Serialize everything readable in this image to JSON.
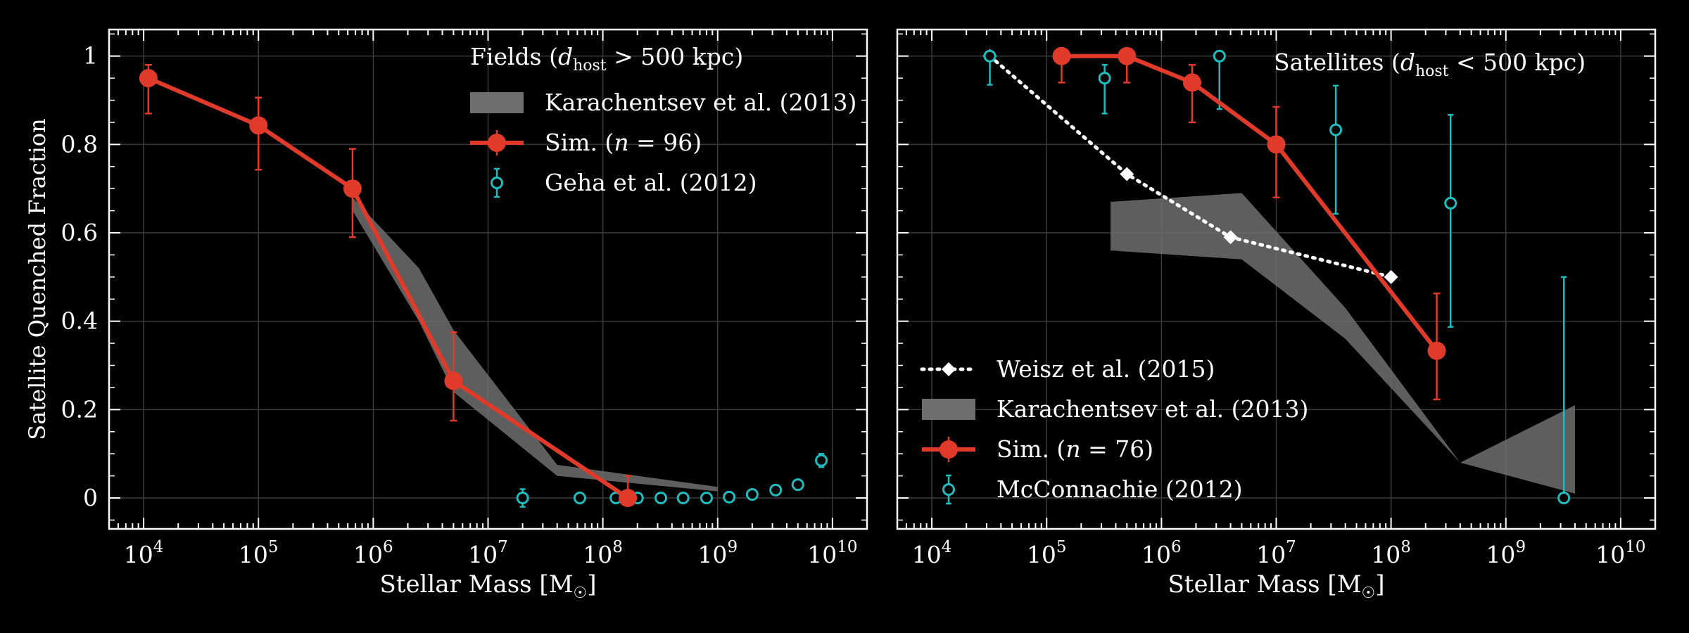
{
  "figure": {
    "background": "#000000",
    "colors": {
      "sim": "#e03a2b",
      "obs": "#1fbcbf",
      "band": "#6e6e6e",
      "weisz": "#ffffff",
      "grid": "#3a3a3a",
      "axes": "#ffffff"
    }
  },
  "shared": {
    "ylabel": "Satellite Quenched Fraction",
    "xlabel": "Stellar Mass [M",
    "xlabel_sub": "☉",
    "xlabel_close": "]",
    "x_ticks": [
      4,
      5,
      6,
      7,
      8,
      9,
      10
    ],
    "x_tick_base": "10",
    "y_ticks": [
      "0",
      "0.2",
      "0.4",
      "0.6",
      "0.8",
      "1"
    ]
  },
  "chart_data": [
    {
      "type": "line",
      "id": "fields",
      "xscale": "log",
      "xlim": [
        5000.0,
        20000000000.0
      ],
      "ylim": [
        -0.07,
        1.06
      ],
      "grid": true,
      "legend": {
        "placement": "top-right",
        "title_pre": "Fields (",
        "title_var": "d",
        "title_sub": "host",
        "title_post": "  >  500 kpc)",
        "entries": [
          {
            "kind": "band",
            "label_pre": "Karachentsev et al. (2013)",
            "label_var": "",
            "label_post": ""
          },
          {
            "kind": "sim",
            "label_pre": "Sim. (",
            "label_var": "n",
            "label_post": " = 96)"
          },
          {
            "kind": "obs",
            "label_pre": "Geha et al. (2012)",
            "label_var": "",
            "label_post": ""
          }
        ]
      },
      "series": [
        {
          "name": "Sim. (n = 96)",
          "kind": "sim",
          "points": [
            {
              "x": 11000.0,
              "y": 0.95,
              "yerr": [
                0.08,
                0.03
              ]
            },
            {
              "x": 100000.0,
              "y": 0.843,
              "yerr": [
                0.1,
                0.063
              ]
            },
            {
              "x": 660000.0,
              "y": 0.7,
              "yerr": [
                0.11,
                0.09
              ]
            },
            {
              "x": 5000000.0,
              "y": 0.265,
              "yerr": [
                0.09,
                0.11
              ]
            },
            {
              "x": 165000000.0,
              "y": 0.0,
              "yerr": [
                0.0,
                0.05
              ]
            }
          ]
        },
        {
          "name": "Geha et al. (2012)",
          "kind": "obs",
          "points": [
            {
              "x": 20000000.0,
              "y": 0.0,
              "yerr": [
                0.02,
                0.02
              ]
            },
            {
              "x": 63000000.0,
              "y": 0.0,
              "yerr": [
                0.01,
                0.01
              ]
            },
            {
              "x": 130000000.0,
              "y": 0.0,
              "yerr": [
                0.01,
                0.01
              ]
            },
            {
              "x": 200000000.0,
              "y": 0.0,
              "yerr": [
                0.01,
                0.01
              ]
            },
            {
              "x": 320000000.0,
              "y": 0.0,
              "yerr": [
                0.01,
                0.01
              ]
            },
            {
              "x": 500000000.0,
              "y": 0.0,
              "yerr": [
                0.01,
                0.01
              ]
            },
            {
              "x": 800000000.0,
              "y": 0.0,
              "yerr": [
                0.01,
                0.01
              ]
            },
            {
              "x": 1260000000.0,
              "y": 0.002,
              "yerr": [
                0.01,
                0.01
              ]
            },
            {
              "x": 2000000000.0,
              "y": 0.008,
              "yerr": [
                0.01,
                0.01
              ]
            },
            {
              "x": 3200000000.0,
              "y": 0.018,
              "yerr": [
                0.01,
                0.01
              ]
            },
            {
              "x": 5000000000.0,
              "y": 0.03,
              "yerr": [
                0.01,
                0.01
              ]
            },
            {
              "x": 8000000000.0,
              "y": 0.085,
              "yerr": [
                0.015,
                0.015
              ]
            }
          ]
        },
        {
          "name": "Karachentsev et al. (2013)",
          "kind": "band",
          "upper": [
            [
              660000.0,
              0.68
            ],
            [
              2500000.0,
              0.52
            ],
            [
              5000000.0,
              0.38
            ],
            [
              40000000.0,
              0.075
            ],
            [
              1000000000.0,
              0.025
            ]
          ],
          "lower": [
            [
              660000.0,
              0.65
            ],
            [
              2500000.0,
              0.4
            ],
            [
              5000000.0,
              0.24
            ],
            [
              40000000.0,
              0.05
            ],
            [
              1000000000.0,
              0.015
            ]
          ]
        }
      ]
    },
    {
      "type": "line",
      "id": "satellites",
      "xscale": "log",
      "xlim": [
        5000.0,
        20000000000.0
      ],
      "ylim": [
        -0.07,
        1.06
      ],
      "grid": true,
      "legend": {
        "placement": "top-right",
        "title_pre": "Satellites (",
        "title_var": "d",
        "title_sub": "host",
        "title_post": "  <  500 kpc)",
        "entries": [
          {
            "kind": "weisz",
            "label_pre": "Weisz et al. (2015)",
            "label_var": "",
            "label_post": ""
          },
          {
            "kind": "band",
            "label_pre": "Karachentsev et al. (2013)",
            "label_var": "",
            "label_post": ""
          },
          {
            "kind": "sim",
            "label_pre": "Sim. (",
            "label_var": "n",
            "label_post": " = 76)"
          },
          {
            "kind": "obs",
            "label_pre": "McConnachie (2012)",
            "label_var": "",
            "label_post": ""
          }
        ],
        "entries_placement": "lower-left"
      },
      "series": [
        {
          "name": "Sim. (n = 76)",
          "kind": "sim",
          "points": [
            {
              "x": 135000.0,
              "y": 1.0,
              "yerr": [
                0.06,
                0.0
              ]
            },
            {
              "x": 500000.0,
              "y": 1.0,
              "yerr": [
                0.06,
                0.0
              ]
            },
            {
              "x": 1850000.0,
              "y": 0.94,
              "yerr": [
                0.09,
                0.04
              ]
            },
            {
              "x": 10000000.0,
              "y": 0.8,
              "yerr": [
                0.12,
                0.085
              ]
            },
            {
              "x": 250000000.0,
              "y": 0.333,
              "yerr": [
                0.11,
                0.13
              ]
            }
          ]
        },
        {
          "name": "McConnachie (2012)",
          "kind": "obs",
          "points": [
            {
              "x": 32000.0,
              "y": 1.0,
              "yerr": [
                0.065,
                0.0
              ]
            },
            {
              "x": 320000.0,
              "y": 0.95,
              "yerr": [
                0.08,
                0.03
              ]
            },
            {
              "x": 3200000.0,
              "y": 1.0,
              "yerr": [
                0.12,
                0.0
              ]
            },
            {
              "x": 33000000.0,
              "y": 0.833,
              "yerr": [
                0.19,
                0.1
              ]
            },
            {
              "x": 330000000.0,
              "y": 0.667,
              "yerr": [
                0.28,
                0.2
              ]
            },
            {
              "x": 3200000000.0,
              "y": 0.0,
              "yerr": [
                0.0,
                0.5
              ]
            }
          ]
        },
        {
          "name": "Weisz et al. (2015)",
          "kind": "weisz",
          "points": [
            {
              "x": 32000.0,
              "y": 1.0
            },
            {
              "x": 500000.0,
              "y": 0.733
            },
            {
              "x": 4000000.0,
              "y": 0.59
            },
            {
              "x": 100000000.0,
              "y": 0.5
            }
          ]
        },
        {
          "name": "Karachentsev et al. (2013)",
          "kind": "band",
          "upper": [
            [
              360000.0,
              0.67
            ],
            [
              5000000.0,
              0.69
            ],
            [
              40000000.0,
              0.43
            ],
            [
              400000000.0,
              0.08
            ],
            [
              4000000000.0,
              0.21
            ]
          ],
          "lower": [
            [
              360000.0,
              0.56
            ],
            [
              5000000.0,
              0.54
            ],
            [
              40000000.0,
              0.36
            ],
            [
              400000000.0,
              0.08
            ],
            [
              4000000000.0,
              0.01
            ]
          ]
        }
      ]
    }
  ]
}
